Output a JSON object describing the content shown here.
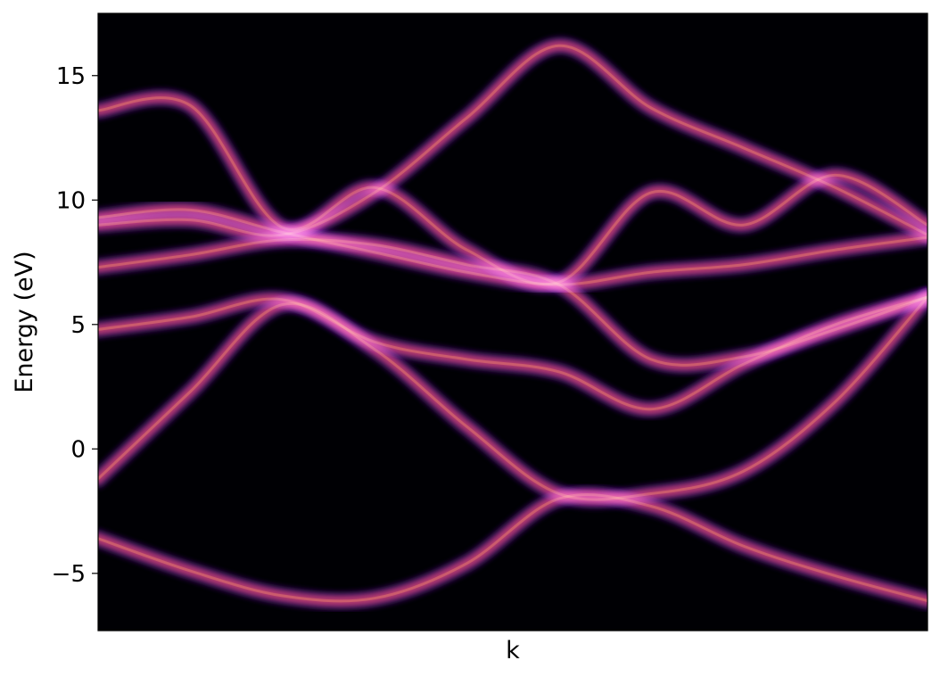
{
  "chart_data": {
    "type": "heatmap",
    "title": "",
    "xlabel": "k",
    "ylabel": "Energy (eV)",
    "xlim": [
      0,
      1
    ],
    "ylim": [
      -7.3,
      17.5
    ],
    "y_ticks": [
      -5,
      0,
      5,
      10,
      15
    ],
    "y_tick_labels": [
      "−5",
      "0",
      "5",
      "10",
      "15"
    ],
    "x_ticks": [],
    "grid": false,
    "legend": "none",
    "colormap": "magma",
    "colormap_stops": [
      "#000004",
      "#3b0f70",
      "#8c2981",
      "#de4968",
      "#fe9f6d",
      "#fcfdbf"
    ],
    "background_color": "#000004",
    "k_points": [
      0,
      0.1111,
      0.2222,
      0.3333,
      0.4444,
      0.5556,
      0.6667,
      0.7778,
      0.8889,
      1
    ],
    "series": [
      {
        "values": [
          -3.6,
          -4.9,
          -5.9,
          -6.0,
          -4.6,
          -2.0,
          -2.3,
          -3.9,
          -5.1,
          -6.1
        ]
      },
      {
        "values": [
          -1.2,
          2.3,
          5.8,
          4.0,
          0.9,
          -1.8,
          -1.8,
          -0.9,
          1.9,
          6.1
        ]
      },
      {
        "values": [
          4.8,
          5.3,
          6.0,
          4.3,
          3.6,
          3.1,
          1.6,
          3.4,
          5.0,
          6.1
        ]
      },
      {
        "values": [
          7.3,
          7.8,
          8.4,
          8.2,
          7.4,
          6.6,
          3.6,
          3.7,
          4.8,
          6.1
        ]
      },
      {
        "values": [
          9.0,
          9.2,
          8.6,
          10.3,
          13.3,
          16.2,
          13.7,
          12.1,
          10.5,
          8.6
        ]
      },
      {
        "values": [
          9.3,
          9.6,
          8.7,
          7.9,
          7.1,
          6.6,
          7.1,
          7.4,
          8.0,
          8.5
        ]
      },
      {
        "values": [
          13.6,
          13.8,
          8.9,
          10.5,
          8.0,
          6.7,
          10.3,
          9.0,
          11.0,
          9.0
        ]
      }
    ]
  }
}
